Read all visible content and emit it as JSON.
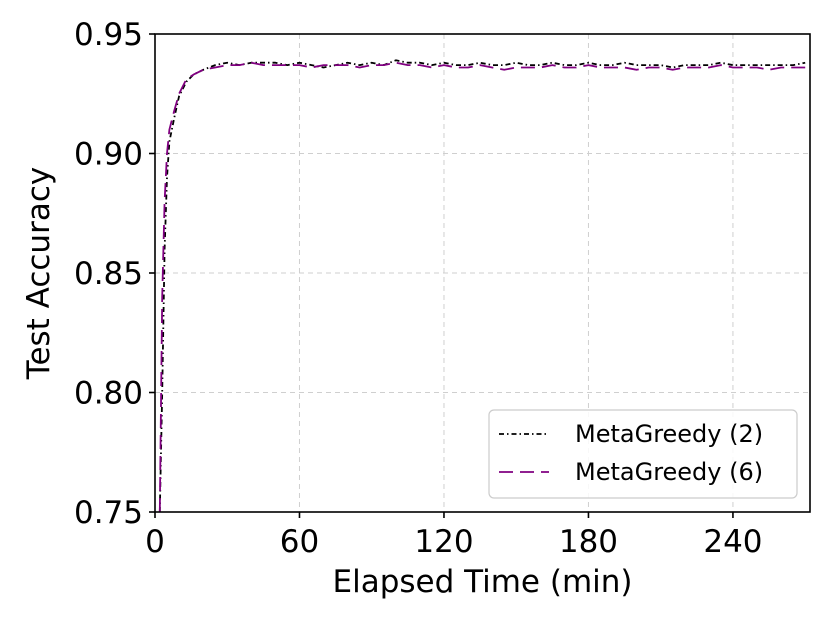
{
  "chart_data": {
    "type": "line",
    "title": "",
    "xlabel": "Elapsed Time (min)",
    "ylabel": "Test Accuracy",
    "xlim": [
      0,
      272
    ],
    "ylim": [
      0.75,
      0.95
    ],
    "xticks": [
      0,
      60,
      120,
      180,
      240
    ],
    "yticks": [
      0.75,
      0.8,
      0.85,
      0.9,
      0.95
    ],
    "xtick_labels": [
      "0",
      "60",
      "120",
      "180",
      "240"
    ],
    "ytick_labels": [
      "0.75",
      "0.80",
      "0.85",
      "0.90",
      "0.95"
    ],
    "grid": true,
    "legend_position": "lower-right",
    "series": [
      {
        "name": "MetaGreedy (2)",
        "color": "#000000",
        "style": "dashdot",
        "x": [
          2,
          3,
          4,
          5,
          6,
          8,
          10,
          13,
          16,
          20,
          25,
          30,
          35,
          40,
          45,
          50,
          55,
          60,
          65,
          70,
          75,
          80,
          85,
          90,
          95,
          100,
          105,
          110,
          115,
          120,
          125,
          130,
          135,
          140,
          145,
          150,
          155,
          160,
          165,
          170,
          175,
          180,
          185,
          190,
          195,
          200,
          205,
          210,
          215,
          220,
          225,
          230,
          235,
          240,
          245,
          250,
          255,
          260,
          265,
          270
        ],
        "y": [
          0.75,
          0.8,
          0.86,
          0.89,
          0.905,
          0.915,
          0.924,
          0.93,
          0.933,
          0.935,
          0.937,
          0.938,
          0.937,
          0.938,
          0.938,
          0.938,
          0.937,
          0.938,
          0.937,
          0.936,
          0.937,
          0.938,
          0.937,
          0.938,
          0.937,
          0.939,
          0.938,
          0.938,
          0.937,
          0.938,
          0.937,
          0.937,
          0.938,
          0.937,
          0.937,
          0.938,
          0.937,
          0.937,
          0.938,
          0.937,
          0.937,
          0.938,
          0.937,
          0.937,
          0.938,
          0.937,
          0.937,
          0.937,
          0.936,
          0.937,
          0.937,
          0.937,
          0.938,
          0.937,
          0.937,
          0.937,
          0.937,
          0.937,
          0.937,
          0.938
        ]
      },
      {
        "name": "MetaGreedy (6)",
        "color": "#800080",
        "style": "dashed",
        "x": [
          2,
          3,
          4,
          5,
          6,
          8,
          10,
          13,
          16,
          20,
          25,
          30,
          35,
          40,
          45,
          50,
          55,
          60,
          65,
          70,
          75,
          80,
          85,
          90,
          95,
          100,
          105,
          110,
          115,
          120,
          125,
          130,
          135,
          140,
          145,
          150,
          155,
          160,
          165,
          170,
          175,
          180,
          185,
          190,
          195,
          200,
          205,
          210,
          215,
          220,
          225,
          230,
          235,
          240,
          245,
          250,
          255,
          260,
          265,
          270
        ],
        "y": [
          0.75,
          0.84,
          0.88,
          0.9,
          0.91,
          0.918,
          0.925,
          0.931,
          0.933,
          0.935,
          0.936,
          0.937,
          0.937,
          0.938,
          0.937,
          0.937,
          0.937,
          0.937,
          0.936,
          0.937,
          0.937,
          0.937,
          0.936,
          0.937,
          0.937,
          0.938,
          0.937,
          0.937,
          0.936,
          0.937,
          0.936,
          0.936,
          0.937,
          0.936,
          0.935,
          0.936,
          0.936,
          0.936,
          0.937,
          0.936,
          0.936,
          0.937,
          0.936,
          0.936,
          0.936,
          0.935,
          0.936,
          0.936,
          0.935,
          0.936,
          0.936,
          0.936,
          0.937,
          0.936,
          0.936,
          0.936,
          0.935,
          0.936,
          0.936,
          0.936
        ]
      }
    ]
  }
}
